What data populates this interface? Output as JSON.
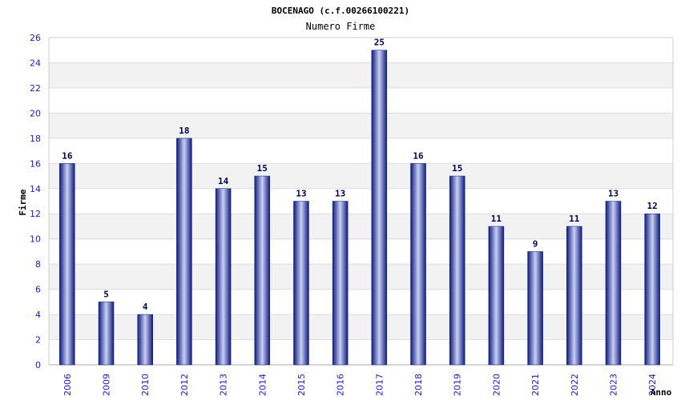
{
  "chart_data": {
    "type": "bar",
    "title": "BOCENAGO (c.f.00266100221)",
    "subtitle": "Numero Firme",
    "xlabel": "Anno",
    "ylabel": "Firme",
    "categories": [
      "2006",
      "2009",
      "2010",
      "2012",
      "2013",
      "2014",
      "2015",
      "2016",
      "2017",
      "2018",
      "2019",
      "2020",
      "2021",
      "2022",
      "2023",
      "2024"
    ],
    "values": [
      16,
      5,
      4,
      18,
      14,
      15,
      13,
      13,
      25,
      16,
      15,
      11,
      9,
      11,
      13,
      12
    ],
    "ylim": [
      0,
      26
    ],
    "yticks": [
      0,
      2,
      4,
      6,
      8,
      10,
      12,
      14,
      16,
      18,
      20,
      22,
      24,
      26
    ],
    "grid": true,
    "bar_color": "#1a2a9a",
    "tick_color": "#1a1acc"
  }
}
